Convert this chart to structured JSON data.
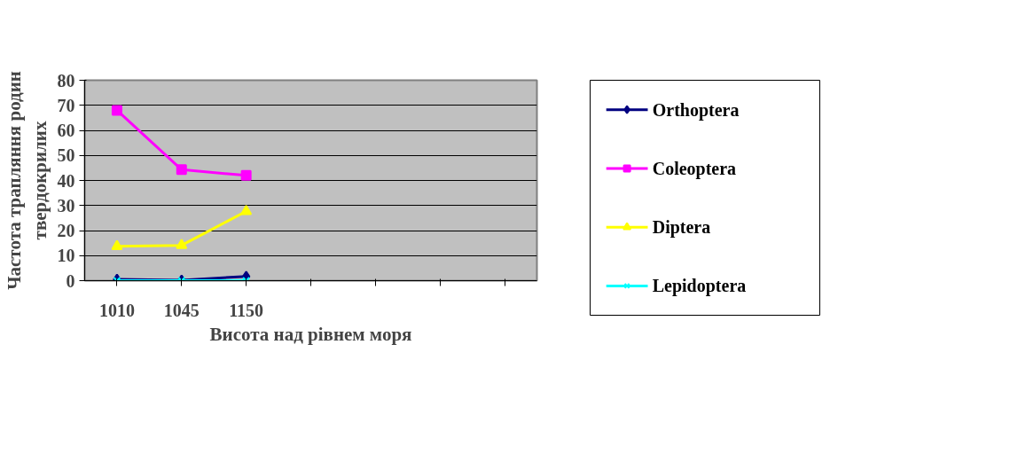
{
  "chart_data": {
    "type": "line",
    "xlabel": "Висота над рівнем моря",
    "ylabel": "Частота трапляння родин твердокрилих",
    "categories": [
      "1010",
      "1045",
      "1150",
      null,
      null,
      null,
      null
    ],
    "series": [
      {
        "name": "Orthoptera",
        "color": "#000080",
        "marker": "diamond",
        "values": [
          0.5,
          0.2,
          1.7,
          null,
          null,
          null,
          null
        ]
      },
      {
        "name": "Coleoptera",
        "color": "#ff00ff",
        "marker": "square",
        "values": [
          68,
          44.3,
          42,
          null,
          null,
          null,
          null
        ]
      },
      {
        "name": "Diptera",
        "color": "#ffff00",
        "marker": "triangle",
        "values": [
          13.7,
          14.1,
          27.7,
          null,
          null,
          null,
          null
        ]
      },
      {
        "name": "Lepidoptera",
        "color": "#00ffff",
        "marker": "cross",
        "values": [
          0,
          0,
          0,
          null,
          null,
          null,
          null
        ]
      }
    ],
    "ylim": [
      0,
      80
    ],
    "yticks": [
      0,
      10,
      20,
      30,
      40,
      50,
      60,
      70,
      80
    ],
    "grid": "y",
    "legend": "right"
  }
}
